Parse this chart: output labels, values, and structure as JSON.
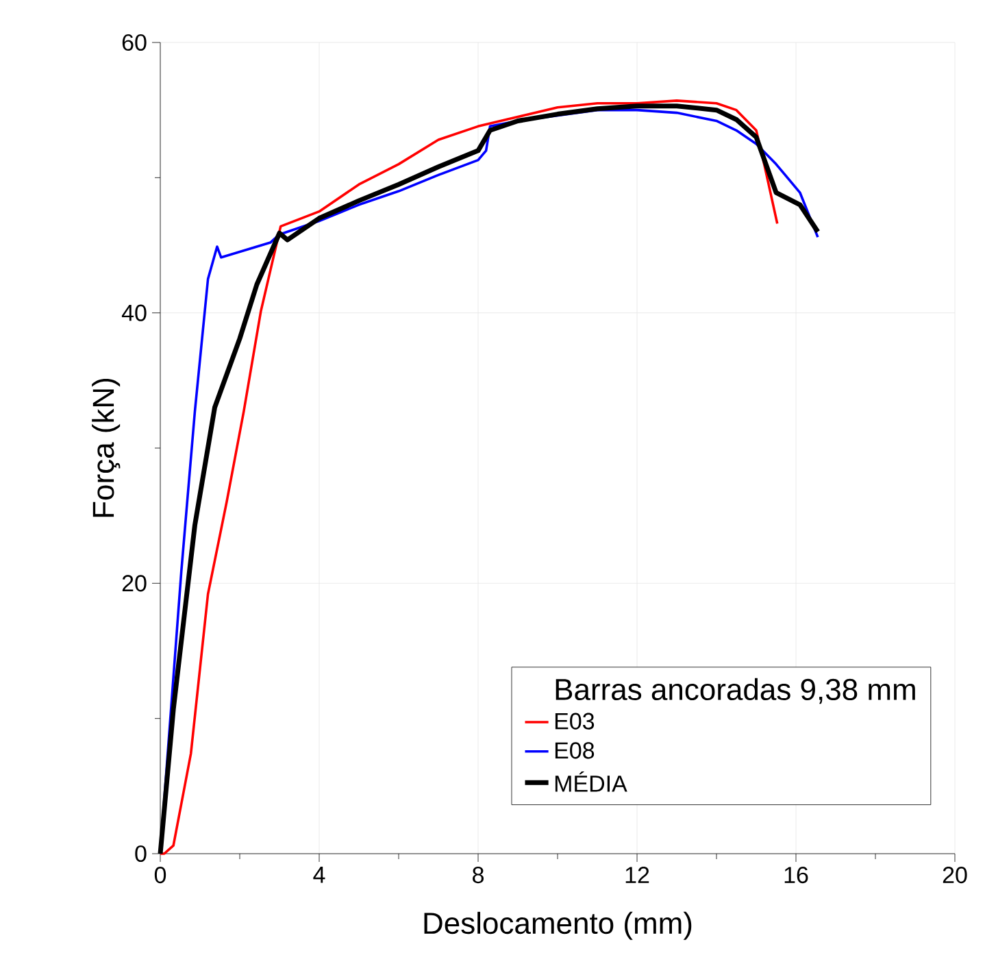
{
  "chart_data": {
    "type": "line",
    "xlabel": "Deslocamento (mm)",
    "ylabel": "Força (kN)",
    "legend_title": "Barras ancoradas 9,38 mm",
    "xlim": [
      0,
      20
    ],
    "ylim": [
      0,
      60
    ],
    "xticks": [
      0,
      4,
      8,
      12,
      16,
      20
    ],
    "yticks": [
      0,
      20,
      40,
      60
    ],
    "grid": true,
    "legend": "bottom right",
    "line_style": "solid",
    "marker": "none",
    "series": [
      {
        "name": "E03",
        "color": "#ff0000",
        "x": [
          0,
          0.1,
          0.33,
          0.77,
          1.2,
          1.67,
          2.1,
          2.53,
          2.87,
          3.03,
          4,
          5,
          6,
          7,
          8,
          9,
          10,
          11,
          12,
          13,
          14,
          14.5,
          15,
          15.2,
          15.53
        ],
        "values": [
          0,
          0,
          0.6,
          7.4,
          19.2,
          26,
          32.7,
          40.1,
          null,
          46.4,
          47.5,
          49.5,
          51,
          52.8,
          53.8,
          54.5,
          55.2,
          55.5,
          55.5,
          55.7,
          55.5,
          55,
          53.5,
          51,
          46.6
        ]
      },
      {
        "name": "E08",
        "color": "#0000ff",
        "x": [
          0,
          0.1,
          0.53,
          0.87,
          1.2,
          1.43,
          1.53,
          2.77,
          3,
          4,
          5,
          6,
          7,
          8,
          8.2,
          8.3,
          9,
          10,
          11,
          12,
          13,
          14,
          14.5,
          15,
          15.5,
          16.1,
          16.55
        ],
        "values": [
          0,
          4,
          20.9,
          32.7,
          42.5,
          44.9,
          44.1,
          45.2,
          45.8,
          46.8,
          48,
          49,
          50.2,
          51.3,
          52,
          53.8,
          54.2,
          null,
          55,
          55,
          54.8,
          54.2,
          53.5,
          52.5,
          51,
          48.9,
          45.6
        ]
      },
      {
        "name": "MÉDIA",
        "color": "#000000",
        "x": [
          0,
          0.33,
          0.87,
          1.37,
          2,
          2.43,
          3,
          3.2,
          4,
          5,
          6,
          7,
          8,
          8.3,
          9,
          10,
          11,
          12,
          13,
          14,
          14.5,
          15,
          15.5,
          16.1,
          16.55
        ],
        "values": [
          0,
          10.7,
          24.3,
          33,
          38.1,
          42.1,
          45.9,
          45.4,
          47,
          48.3,
          49.5,
          50.8,
          52,
          53.5,
          54.2,
          54.7,
          55.1,
          55.3,
          55.3,
          55,
          54.3,
          53,
          48.9,
          48,
          46
        ]
      }
    ]
  }
}
